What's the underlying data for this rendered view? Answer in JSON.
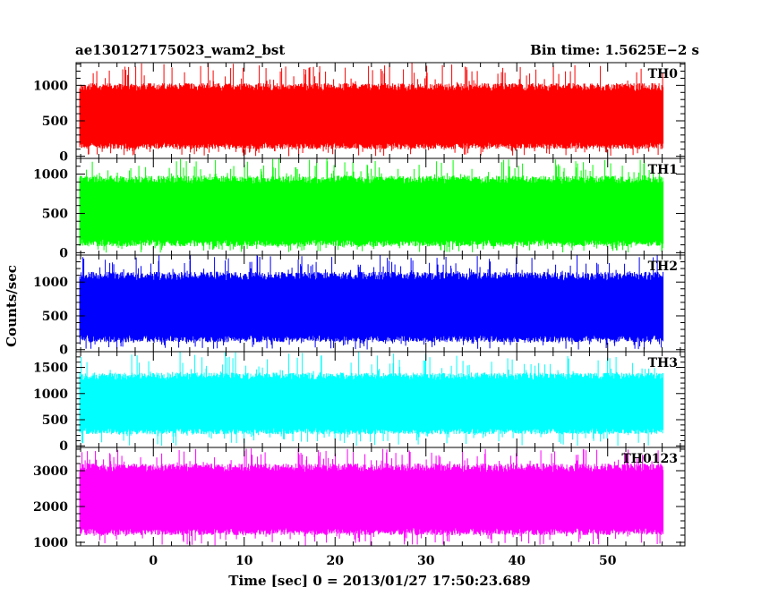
{
  "chart_data": {
    "type": "line",
    "title_left": "ae130127175023_wam2_bst",
    "title_right": "Bin time: 1.5625E−2 s",
    "xlabel": "Time [sec] 0 = 2013/01/27 17:50:23.689",
    "ylabel": "Counts/sec",
    "xlim": [
      -8.5,
      58.5
    ],
    "x_data_range": [
      -8.1,
      56.1
    ],
    "bin_time": 0.015625,
    "xticks": [
      0,
      10,
      20,
      30,
      40,
      50
    ],
    "x_tick_labels": [
      "0",
      "10",
      "20",
      "30",
      "40",
      "50"
    ],
    "grid": false,
    "panels": [
      {
        "name": "TH0",
        "color": "#ff0000",
        "ylim": [
          -30,
          1320
        ],
        "yticks": [
          0,
          500,
          1000
        ],
        "y_tick_labels": [
          "0",
          "500",
          "1000"
        ],
        "mean": 560,
        "low": 100,
        "high": 1030,
        "peak": 1320,
        "floor": 0
      },
      {
        "name": "TH1",
        "color": "#00ff00",
        "ylim": [
          -30,
          1200
        ],
        "yticks": [
          0,
          500,
          1000
        ],
        "y_tick_labels": [
          "0",
          "500",
          "1000"
        ],
        "mean": 520,
        "low": 80,
        "high": 980,
        "peak": 1200,
        "floor": 0
      },
      {
        "name": "TH2",
        "color": "#0000ff",
        "ylim": [
          -30,
          1400
        ],
        "yticks": [
          0,
          500,
          1000
        ],
        "y_tick_labels": [
          "0",
          "500",
          "1000"
        ],
        "mean": 620,
        "low": 110,
        "high": 1150,
        "peak": 1420,
        "floor": 0
      },
      {
        "name": "TH3",
        "color": "#00ffff",
        "ylim": [
          -30,
          1800
        ],
        "yticks": [
          0,
          500,
          1000,
          1500
        ],
        "y_tick_labels": [
          "0",
          "500",
          "1000",
          "1500"
        ],
        "mean": 820,
        "low": 220,
        "high": 1400,
        "peak": 1800,
        "floor": 0
      },
      {
        "name": "TH0123",
        "color": "#ff00ff",
        "ylim": [
          900,
          3650
        ],
        "yticks": [
          1000,
          2000,
          3000
        ],
        "y_tick_labels": [
          "1000",
          "2000",
          "3000"
        ],
        "mean": 2180,
        "low": 1200,
        "high": 3200,
        "peak": 3650,
        "floor": 900
      }
    ]
  }
}
